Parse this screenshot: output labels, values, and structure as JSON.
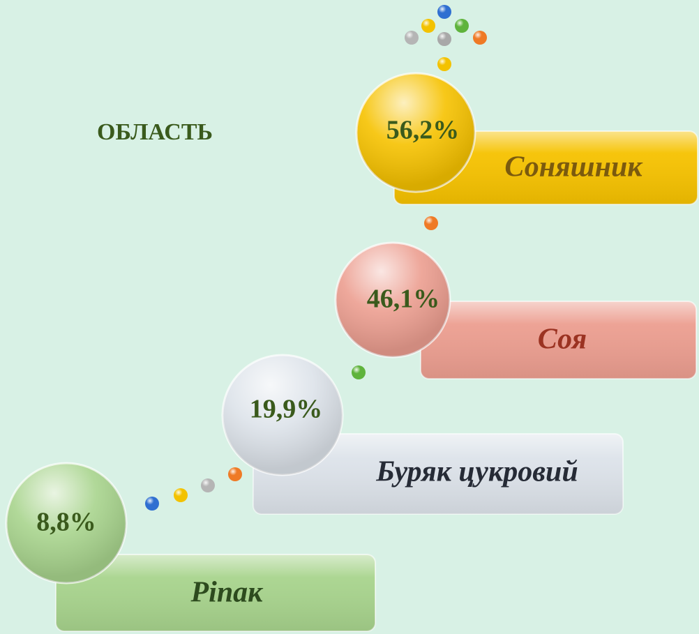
{
  "title": "ОБЛАСТЬ",
  "items": [
    {
      "value": "56,2%",
      "label": "Соняшник"
    },
    {
      "value": "46,1%",
      "label": "Соя"
    },
    {
      "value": "19,9%",
      "label": "Буряк цукровий"
    },
    {
      "value": "8,8%",
      "label": "Ріпак"
    }
  ]
}
